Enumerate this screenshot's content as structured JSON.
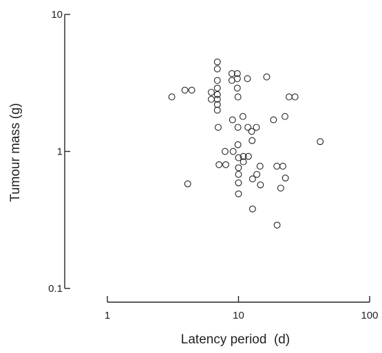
{
  "chart_data": {
    "type": "scatter",
    "title": "",
    "xlabel": "Latency period  (d)",
    "ylabel": "Tumour mass (g)",
    "xscale": "log",
    "yscale": "log",
    "xlim": [
      1,
      100
    ],
    "ylim": [
      0.1,
      10
    ],
    "xticks": [
      1,
      10,
      100
    ],
    "xtick_labels": [
      "1",
      "10",
      "100"
    ],
    "yticks": [
      0.1,
      1,
      10
    ],
    "ytick_labels": [
      "0.1",
      "1",
      "10"
    ],
    "grid": false,
    "legend": "none",
    "marker": "open-circle",
    "color": "#222222",
    "series": [
      {
        "points": [
          [
            3.1,
            2.5
          ],
          [
            3.9,
            2.8
          ],
          [
            4.4,
            2.8
          ],
          [
            4.1,
            0.58
          ],
          [
            6.2,
            2.7
          ],
          [
            6.2,
            2.4
          ],
          [
            6.9,
            4.5
          ],
          [
            6.9,
            4.0
          ],
          [
            6.9,
            3.3
          ],
          [
            6.9,
            2.9
          ],
          [
            6.9,
            2.6
          ],
          [
            6.9,
            2.4
          ],
          [
            6.9,
            2.2
          ],
          [
            6.9,
            2.0
          ],
          [
            7.0,
            1.5
          ],
          [
            7.1,
            0.8
          ],
          [
            7.9,
            1.0
          ],
          [
            8.0,
            0.8
          ],
          [
            8.9,
            3.7
          ],
          [
            8.9,
            3.3
          ],
          [
            9.0,
            1.7
          ],
          [
            9.1,
            1.0
          ],
          [
            9.8,
            3.7
          ],
          [
            9.8,
            3.4
          ],
          [
            9.8,
            2.9
          ],
          [
            9.9,
            2.5
          ],
          [
            9.9,
            1.5
          ],
          [
            9.9,
            1.12
          ],
          [
            10.0,
            0.9
          ],
          [
            10.0,
            0.76
          ],
          [
            10.0,
            0.68
          ],
          [
            10.0,
            0.59
          ],
          [
            10.0,
            0.49
          ],
          [
            10.8,
            1.8
          ],
          [
            10.9,
            0.92
          ],
          [
            10.9,
            0.84
          ],
          [
            11.9,
            0.92
          ],
          [
            11.7,
            3.4
          ],
          [
            11.8,
            1.5
          ],
          [
            12.6,
            1.4
          ],
          [
            12.7,
            1.2
          ],
          [
            12.8,
            0.63
          ],
          [
            12.8,
            0.38
          ],
          [
            13.7,
            1.5
          ],
          [
            13.8,
            0.68
          ],
          [
            14.6,
            0.78
          ],
          [
            14.7,
            0.57
          ],
          [
            16.4,
            3.5
          ],
          [
            18.5,
            1.7
          ],
          [
            19.6,
            0.78
          ],
          [
            19.7,
            0.29
          ],
          [
            21.0,
            0.54
          ],
          [
            21.8,
            0.78
          ],
          [
            22.6,
            1.8
          ],
          [
            22.8,
            0.64
          ],
          [
            24.3,
            2.5
          ],
          [
            27.0,
            2.5
          ],
          [
            42.0,
            1.18
          ]
        ]
      }
    ]
  }
}
